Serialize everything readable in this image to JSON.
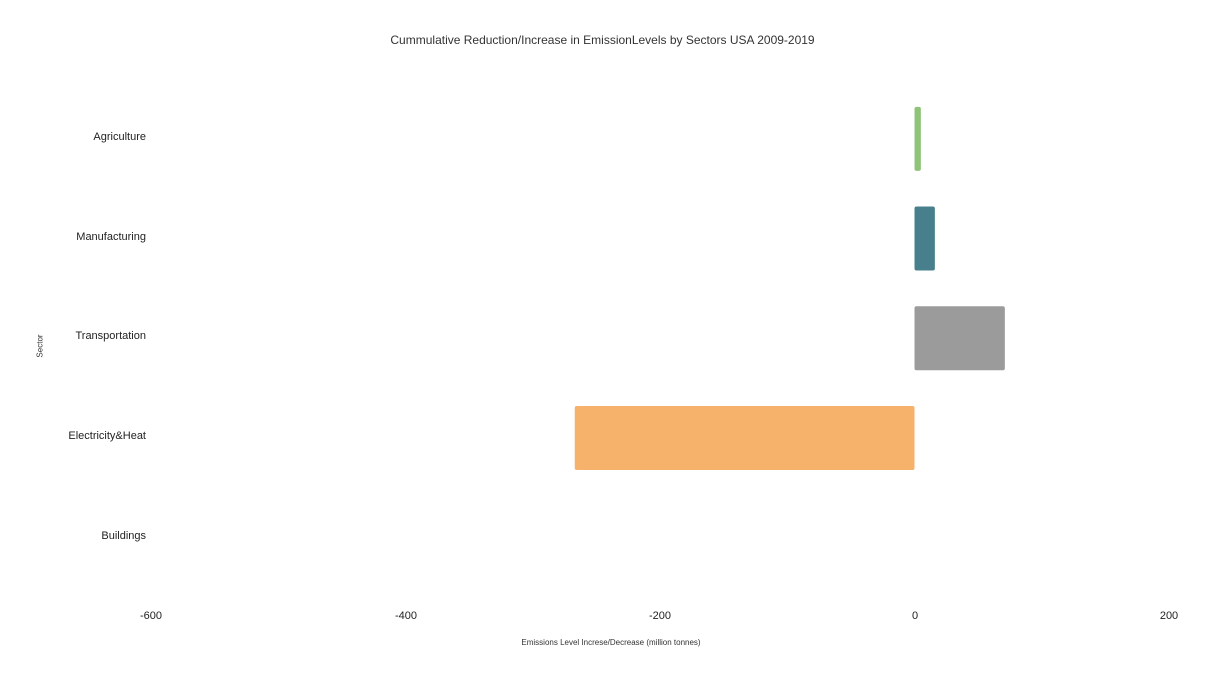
{
  "chart_data": {
    "type": "bar",
    "orientation": "horizontal",
    "title": "Cummulative Reduction/Increase in EmissionLevels by Sectors USA 2009-2019",
    "xlabel": "Emissions Level Increse/Decrease (million tonnes)",
    "ylabel": "Sector",
    "categories": [
      "Agriculture",
      "Manufacturing",
      "Transportation",
      "Electricity&Heat",
      "Buildings"
    ],
    "values": [
      5,
      16,
      71,
      -267,
      0
    ],
    "colors": [
      "#8fc478",
      "#47808c",
      "#9b9b9b",
      "#f6b26b",
      "#cccccc"
    ],
    "xlim": [
      -600,
      200
    ],
    "xticks": [
      "-600",
      "-400",
      "-200",
      "0",
      "200"
    ],
    "grid": false,
    "legend": "none"
  }
}
